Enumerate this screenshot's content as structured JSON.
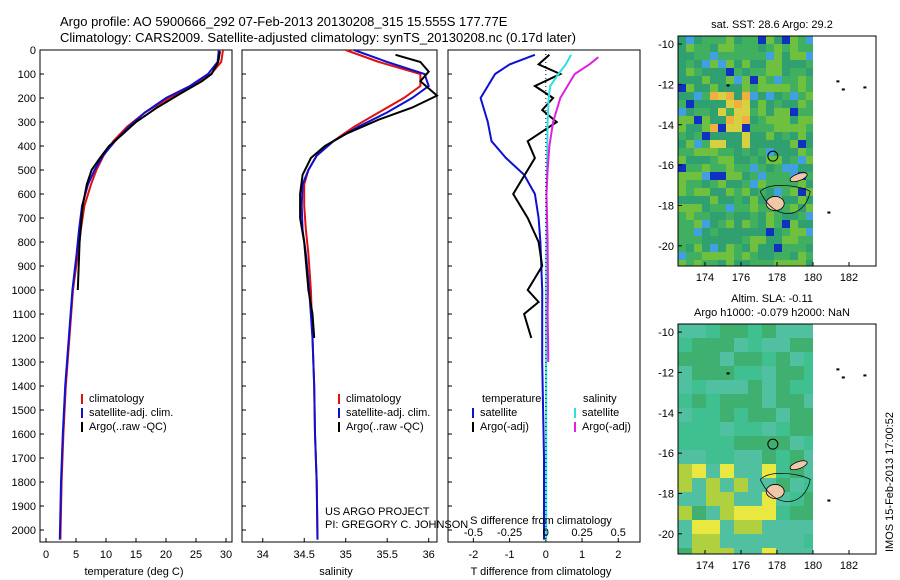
{
  "header": {
    "line1": "Argo profile: AO 5900666_292 07-Feb-2013 20130208_315 15.555S 177.77E",
    "line2": "Climatology: CARS2009. Satellite-adjusted climatology: synTS_20130208.nc (0.17d later)"
  },
  "side_label": "IMOS 15-Feb-2013 17:00:52",
  "credit": {
    "line1": "US ARGO PROJECT",
    "line2": "PI: GREGORY C. JOHNSON"
  },
  "colors": {
    "climatology": "#e01010",
    "satellite": "#1010d0",
    "argo": "#000000",
    "satellite_s": "#30e0e0",
    "argo_s": "#e020e0"
  },
  "chart_data": [
    {
      "type": "line",
      "id": "temperature",
      "xlabel": "temperature (deg C)",
      "ylabel": "",
      "xlim": [
        -1,
        31
      ],
      "ylim": [
        2050,
        0
      ],
      "xticks": [
        0,
        5,
        10,
        15,
        20,
        25,
        30
      ],
      "xtick_labels": [
        "0",
        "5",
        "10",
        "15",
        "20",
        "25",
        "30"
      ],
      "yticks": [
        0,
        100,
        200,
        300,
        400,
        500,
        600,
        700,
        800,
        900,
        1000,
        1100,
        1200,
        1300,
        1400,
        1500,
        1600,
        1700,
        1800,
        1900,
        2000
      ],
      "ytick_labels": [
        "0",
        "100",
        "200",
        "300",
        "400",
        "500",
        "600",
        "700",
        "800",
        "900",
        "1000",
        "1100",
        "1200",
        "1300",
        "1400",
        "1500",
        "1600",
        "1700",
        "1800",
        "1900",
        "2000"
      ],
      "legend": [
        "climatology",
        "satellite-adj. clim.",
        "Argo(..raw -QC)"
      ],
      "series": [
        {
          "name": "climatology",
          "color": "#e01010",
          "x": [
            29.5,
            29.2,
            27.5,
            24.5,
            20.5,
            16.5,
            13.5,
            11.2,
            9.6,
            8.4,
            7.5,
            6.4,
            5.8,
            5.3,
            4.5,
            3.9,
            3.3,
            2.9,
            2.6,
            2.4
          ],
          "y": [
            0,
            50,
            100,
            150,
            200,
            260,
            320,
            380,
            440,
            500,
            560,
            650,
            750,
            850,
            1000,
            1200,
            1400,
            1600,
            1800,
            2040
          ]
        },
        {
          "name": "satellite-adj. clim.",
          "color": "#1010d0",
          "x": [
            28.8,
            28.6,
            27.0,
            24.0,
            20.0,
            16.5,
            13.8,
            11.5,
            9.5,
            8.1,
            7.0,
            6.0,
            5.5,
            5.1,
            4.4,
            3.8,
            3.2,
            2.8,
            2.5,
            2.3
          ],
          "y": [
            0,
            50,
            100,
            150,
            200,
            260,
            320,
            380,
            440,
            500,
            560,
            650,
            750,
            850,
            1000,
            1200,
            1400,
            1600,
            1800,
            2040
          ]
        },
        {
          "name": "Argo(..raw -QC)",
          "color": "#000000",
          "x": [
            29.0,
            28.7,
            27.6,
            26.0,
            22.5,
            18.5,
            15.0,
            12.8,
            10.5,
            9.0,
            7.6,
            6.8,
            6.1,
            5.6,
            5.3
          ],
          "y": [
            5,
            50,
            100,
            130,
            180,
            240,
            300,
            350,
            400,
            450,
            500,
            560,
            650,
            800,
            1000
          ]
        }
      ]
    },
    {
      "type": "line",
      "id": "salinity",
      "xlabel": "salinity",
      "ylabel": "",
      "xlim": [
        33.75,
        36.1
      ],
      "ylim": [
        2050,
        0
      ],
      "xticks": [
        34,
        34.5,
        35,
        35.5,
        36
      ],
      "xtick_labels": [
        "34",
        "34.5",
        "35",
        "35.5",
        "36"
      ],
      "legend": [
        "climatology",
        "satellite-adj. clim.",
        "Argo(..raw -QC)"
      ],
      "series": [
        {
          "name": "climatology",
          "color": "#e01010",
          "x": [
            35.0,
            35.4,
            35.9,
            35.9,
            35.7,
            35.4,
            35.1,
            34.85,
            34.65,
            34.55,
            34.5,
            34.5,
            34.52,
            34.55,
            34.58,
            34.6,
            34.62,
            34.63,
            34.65,
            34.66
          ],
          "y": [
            0,
            50,
            100,
            150,
            200,
            260,
            320,
            380,
            440,
            500,
            560,
            650,
            750,
            850,
            1000,
            1200,
            1400,
            1600,
            1800,
            2040
          ]
        },
        {
          "name": "satellite-adj. clim.",
          "color": "#1010d0",
          "x": [
            35.1,
            35.5,
            35.95,
            36.0,
            35.8,
            35.5,
            35.15,
            34.85,
            34.65,
            34.55,
            34.48,
            34.47,
            34.48,
            34.52,
            34.56,
            34.6,
            34.62,
            34.63,
            34.65,
            34.66
          ],
          "y": [
            0,
            50,
            100,
            150,
            200,
            260,
            320,
            380,
            440,
            500,
            560,
            650,
            750,
            850,
            1000,
            1200,
            1400,
            1600,
            1800,
            2040
          ]
        },
        {
          "name": "Argo(..raw -QC)",
          "color": "#000000",
          "x": [
            35.6,
            35.9,
            36.0,
            35.9,
            36.1,
            35.8,
            35.4,
            35.0,
            34.75,
            34.58,
            34.48,
            34.45,
            34.45,
            34.5,
            34.55,
            34.6,
            34.62
          ],
          "y": [
            20,
            50,
            90,
            130,
            190,
            240,
            290,
            350,
            400,
            450,
            520,
            600,
            700,
            800,
            1000,
            1100,
            1200
          ]
        }
      ]
    },
    {
      "type": "line",
      "id": "difference",
      "xlabel": "T difference from climatology",
      "xlabel_top": "S difference from climatology",
      "xlim": [
        -2.7,
        2.6
      ],
      "ylim": [
        2050,
        0
      ],
      "xticks": [
        -2,
        -1,
        0,
        1,
        2
      ],
      "xtick_labels": [
        "-2",
        "-1",
        "0",
        "1",
        "2"
      ],
      "s_ticks": [
        -0.5,
        -0.25,
        0,
        0.25,
        0.5
      ],
      "s_tick_labels": [
        "-0.5",
        "-0.25",
        "0",
        "0.25",
        "0.5"
      ],
      "legend_t_title": "temperature",
      "legend_s_title": "salinity",
      "legend_t": [
        "satellite",
        "Argo(-adj)"
      ],
      "legend_s": [
        "satellite",
        "Argo(-adj)"
      ],
      "series": [
        {
          "name": "T satellite",
          "color": "#1010d0",
          "x": [
            -0.3,
            -1.0,
            -1.4,
            -1.8,
            -1.6,
            -1.5,
            -1.1,
            -0.6,
            -0.3,
            -0.2,
            -0.15,
            -0.1,
            -0.1,
            -0.05,
            -0.05
          ],
          "y": [
            20,
            60,
            100,
            200,
            300,
            380,
            450,
            520,
            600,
            700,
            800,
            1000,
            1300,
            1700,
            2040
          ]
        },
        {
          "name": "T Argo(-adj)",
          "color": "#000000",
          "x": [
            0.1,
            -0.2,
            0.4,
            -0.3,
            0.2,
            -0.1,
            0.3,
            -0.5,
            -0.3,
            -0.9,
            -0.5,
            -0.2,
            -0.1,
            -0.5,
            -0.2,
            -0.6,
            -0.4
          ],
          "y": [
            20,
            60,
            100,
            150,
            200,
            250,
            300,
            380,
            450,
            600,
            700,
            800,
            900,
            1000,
            1050,
            1100,
            1200
          ]
        },
        {
          "name": "S satellite",
          "color": "#30e0e0",
          "x": [
            0.7,
            0.55,
            0.35,
            0.12,
            0.08,
            0.05,
            0.04,
            0.03,
            0.02,
            0.02,
            0.01,
            0.01,
            0.01,
            0.01
          ],
          "y": [
            20,
            60,
            100,
            150,
            200,
            300,
            400,
            500,
            600,
            800,
            1000,
            1400,
            1800,
            2040
          ]
        },
        {
          "name": "S Argo(-adj)",
          "color": "#e020e0",
          "x": [
            1.45,
            1.2,
            0.8,
            0.6,
            0.4,
            0.2,
            0.1,
            0.05,
            0.02,
            0.05,
            0.06,
            0.05,
            0.06,
            0.07
          ],
          "y": [
            30,
            60,
            100,
            150,
            200,
            300,
            400,
            500,
            600,
            800,
            1000,
            1100,
            1200,
            1300
          ]
        }
      ]
    },
    {
      "type": "heatmap",
      "id": "sst_map",
      "title": "sat. SST: 28.6 Argo: 29.2",
      "xlim": [
        172.5,
        183.5
      ],
      "ylim": [
        -21,
        -9.6
      ],
      "xticks": [
        174,
        176,
        178,
        180,
        182
      ],
      "xtick_labels": [
        "174",
        "176",
        "178",
        "180",
        "182"
      ],
      "yticks": [
        -10,
        -12,
        -14,
        -16,
        -18,
        -20
      ],
      "ytick_labels": [
        "-10",
        "-12",
        "-14",
        "-16",
        "-18",
        "-20"
      ],
      "data_extent_lon": [
        172.5,
        180.0
      ],
      "argo_position": {
        "lon": 177.77,
        "lat": -15.555
      }
    },
    {
      "type": "heatmap",
      "id": "sla_map",
      "title_line1": "Altim. SLA: -0.11",
      "title_line2": "Argo h1000: -0.079 h2000: NaN",
      "xlim": [
        172.5,
        183.5
      ],
      "ylim": [
        -21,
        -9.6
      ],
      "xticks": [
        174,
        176,
        178,
        180,
        182
      ],
      "xtick_labels": [
        "174",
        "176",
        "178",
        "180",
        "182"
      ],
      "yticks": [
        -10,
        -12,
        -14,
        -16,
        -18,
        -20
      ],
      "ytick_labels": [
        "-10",
        "-12",
        "-14",
        "-16",
        "-18",
        "-20"
      ],
      "data_extent_lon": [
        172.5,
        180.0
      ],
      "argo_position": {
        "lon": 177.77,
        "lat": -15.555
      }
    }
  ]
}
